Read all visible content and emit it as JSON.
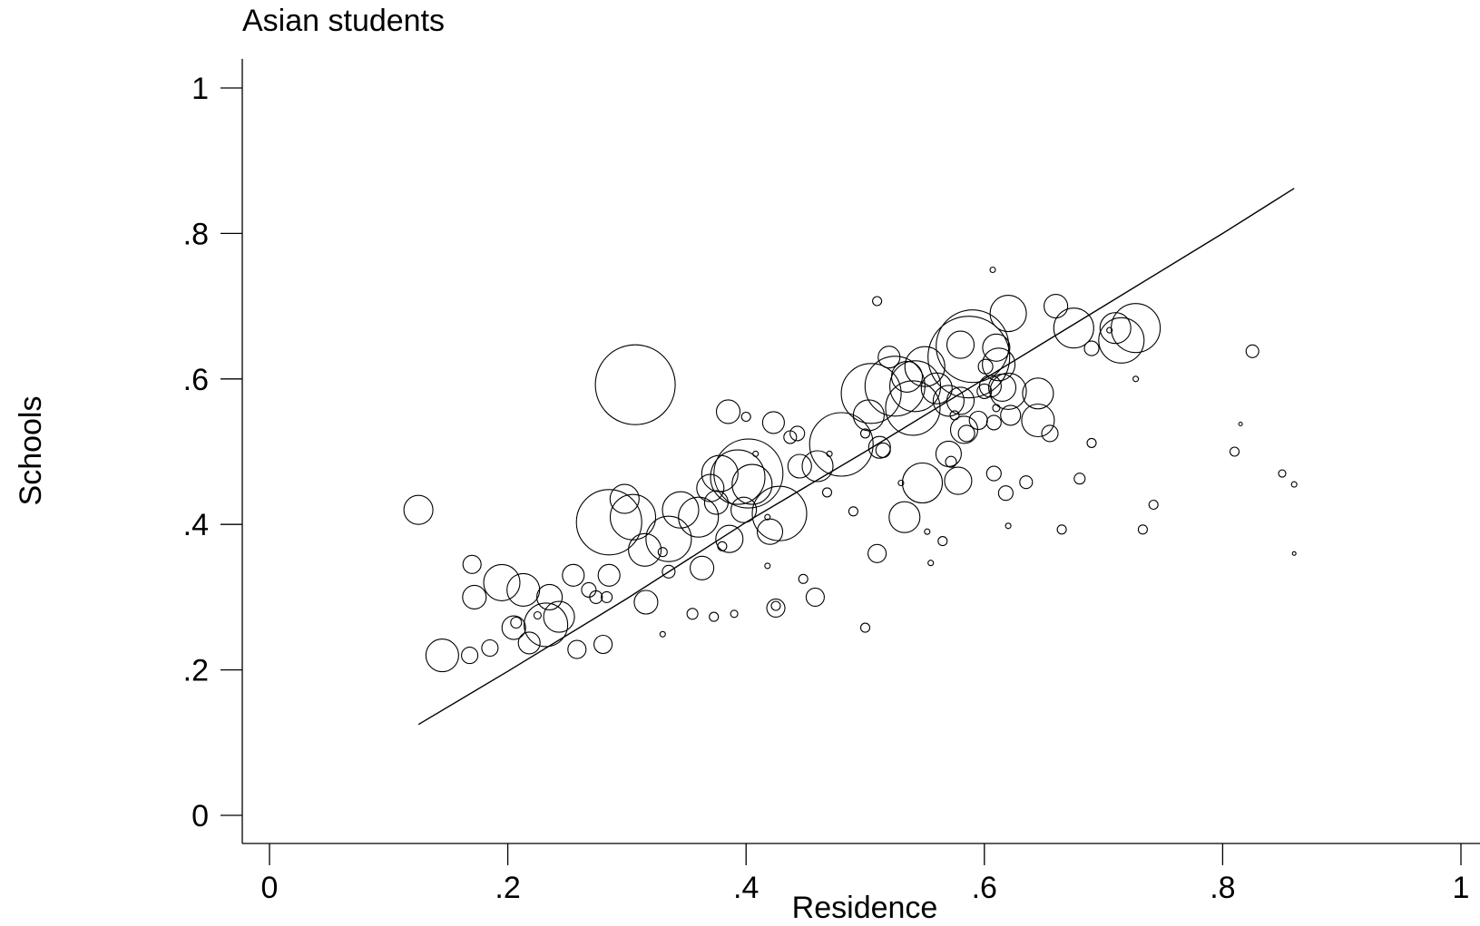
{
  "chart_data": {
    "type": "scatter",
    "title": "Asian students",
    "xlabel": "Residence",
    "ylabel": "Schools",
    "xlim": [
      -0.025,
      1.005
    ],
    "ylim": [
      -0.04,
      1.04
    ],
    "x_ticks": [
      0,
      0.2,
      0.4,
      0.6,
      0.8,
      1
    ],
    "x_tick_labels": [
      "0",
      ".2",
      ".4",
      ".6",
      ".8",
      "1"
    ],
    "y_ticks": [
      0,
      0.2,
      0.4,
      0.6,
      0.8,
      1
    ],
    "y_tick_labels": [
      "0",
      ".2",
      ".4",
      ".6",
      ".8",
      "1"
    ],
    "grid": false,
    "legend": "none",
    "marker": "hollow circle (size = weight)",
    "points": [
      {
        "x": 0.125,
        "y": 0.42,
        "r": 16
      },
      {
        "x": 0.145,
        "y": 0.22,
        "r": 18
      },
      {
        "x": 0.168,
        "y": 0.22,
        "r": 9
      },
      {
        "x": 0.17,
        "y": 0.345,
        "r": 10
      },
      {
        "x": 0.172,
        "y": 0.3,
        "r": 13
      },
      {
        "x": 0.185,
        "y": 0.23,
        "r": 9
      },
      {
        "x": 0.195,
        "y": 0.32,
        "r": 20
      },
      {
        "x": 0.207,
        "y": 0.265,
        "r": 6
      },
      {
        "x": 0.205,
        "y": 0.258,
        "r": 13
      },
      {
        "x": 0.213,
        "y": 0.31,
        "r": 18
      },
      {
        "x": 0.218,
        "y": 0.237,
        "r": 12
      },
      {
        "x": 0.225,
        "y": 0.275,
        "r": 4
      },
      {
        "x": 0.232,
        "y": 0.262,
        "r": 24
      },
      {
        "x": 0.235,
        "y": 0.3,
        "r": 14
      },
      {
        "x": 0.243,
        "y": 0.273,
        "r": 17
      },
      {
        "x": 0.255,
        "y": 0.33,
        "r": 12
      },
      {
        "x": 0.258,
        "y": 0.228,
        "r": 10
      },
      {
        "x": 0.268,
        "y": 0.31,
        "r": 8
      },
      {
        "x": 0.274,
        "y": 0.3,
        "r": 7
      },
      {
        "x": 0.28,
        "y": 0.235,
        "r": 10
      },
      {
        "x": 0.283,
        "y": 0.3,
        "r": 6
      },
      {
        "x": 0.285,
        "y": 0.33,
        "r": 12
      },
      {
        "x": 0.285,
        "y": 0.403,
        "r": 36
      },
      {
        "x": 0.298,
        "y": 0.435,
        "r": 16
      },
      {
        "x": 0.305,
        "y": 0.41,
        "r": 25
      },
      {
        "x": 0.307,
        "y": 0.592,
        "r": 44
      },
      {
        "x": 0.315,
        "y": 0.365,
        "r": 18
      },
      {
        "x": 0.316,
        "y": 0.293,
        "r": 13
      },
      {
        "x": 0.33,
        "y": 0.249,
        "r": 3
      },
      {
        "x": 0.33,
        "y": 0.362,
        "r": 5
      },
      {
        "x": 0.335,
        "y": 0.335,
        "r": 7
      },
      {
        "x": 0.335,
        "y": 0.38,
        "r": 25
      },
      {
        "x": 0.345,
        "y": 0.42,
        "r": 20
      },
      {
        "x": 0.355,
        "y": 0.277,
        "r": 6
      },
      {
        "x": 0.36,
        "y": 0.41,
        "r": 22
      },
      {
        "x": 0.363,
        "y": 0.34,
        "r": 13
      },
      {
        "x": 0.37,
        "y": 0.45,
        "r": 15
      },
      {
        "x": 0.373,
        "y": 0.273,
        "r": 5
      },
      {
        "x": 0.375,
        "y": 0.43,
        "r": 13
      },
      {
        "x": 0.378,
        "y": 0.47,
        "r": 20
      },
      {
        "x": 0.38,
        "y": 0.37,
        "r": 5
      },
      {
        "x": 0.385,
        "y": 0.555,
        "r": 13
      },
      {
        "x": 0.386,
        "y": 0.38,
        "r": 15
      },
      {
        "x": 0.39,
        "y": 0.277,
        "r": 4
      },
      {
        "x": 0.393,
        "y": 0.465,
        "r": 30
      },
      {
        "x": 0.398,
        "y": 0.42,
        "r": 14
      },
      {
        "x": 0.4,
        "y": 0.548,
        "r": 5
      },
      {
        "x": 0.402,
        "y": 0.47,
        "r": 38
      },
      {
        "x": 0.405,
        "y": 0.455,
        "r": 22
      },
      {
        "x": 0.408,
        "y": 0.497,
        "r": 3
      },
      {
        "x": 0.418,
        "y": 0.343,
        "r": 3
      },
      {
        "x": 0.418,
        "y": 0.41,
        "r": 3
      },
      {
        "x": 0.42,
        "y": 0.39,
        "r": 14
      },
      {
        "x": 0.423,
        "y": 0.54,
        "r": 12
      },
      {
        "x": 0.425,
        "y": 0.285,
        "r": 10
      },
      {
        "x": 0.425,
        "y": 0.288,
        "r": 5
      },
      {
        "x": 0.428,
        "y": 0.415,
        "r": 30
      },
      {
        "x": 0.437,
        "y": 0.52,
        "r": 7
      },
      {
        "x": 0.443,
        "y": 0.525,
        "r": 8
      },
      {
        "x": 0.445,
        "y": 0.48,
        "r": 13
      },
      {
        "x": 0.448,
        "y": 0.325,
        "r": 5
      },
      {
        "x": 0.458,
        "y": 0.3,
        "r": 10
      },
      {
        "x": 0.46,
        "y": 0.48,
        "r": 17
      },
      {
        "x": 0.468,
        "y": 0.444,
        "r": 5
      },
      {
        "x": 0.47,
        "y": 0.497,
        "r": 3
      },
      {
        "x": 0.48,
        "y": 0.51,
        "r": 35
      },
      {
        "x": 0.49,
        "y": 0.418,
        "r": 5
      },
      {
        "x": 0.5,
        "y": 0.258,
        "r": 5
      },
      {
        "x": 0.5,
        "y": 0.525,
        "r": 5
      },
      {
        "x": 0.503,
        "y": 0.55,
        "r": 17
      },
      {
        "x": 0.505,
        "y": 0.58,
        "r": 33
      },
      {
        "x": 0.51,
        "y": 0.36,
        "r": 10
      },
      {
        "x": 0.51,
        "y": 0.707,
        "r": 5
      },
      {
        "x": 0.512,
        "y": 0.506,
        "r": 12
      },
      {
        "x": 0.515,
        "y": 0.502,
        "r": 8
      },
      {
        "x": 0.52,
        "y": 0.63,
        "r": 12
      },
      {
        "x": 0.525,
        "y": 0.59,
        "r": 33
      },
      {
        "x": 0.53,
        "y": 0.457,
        "r": 3
      },
      {
        "x": 0.533,
        "y": 0.41,
        "r": 17
      },
      {
        "x": 0.535,
        "y": 0.603,
        "r": 17
      },
      {
        "x": 0.54,
        "y": 0.56,
        "r": 30
      },
      {
        "x": 0.542,
        "y": 0.59,
        "r": 28
      },
      {
        "x": 0.548,
        "y": 0.457,
        "r": 22
      },
      {
        "x": 0.55,
        "y": 0.617,
        "r": 22
      },
      {
        "x": 0.552,
        "y": 0.39,
        "r": 3
      },
      {
        "x": 0.555,
        "y": 0.347,
        "r": 3
      },
      {
        "x": 0.56,
        "y": 0.587,
        "r": 17
      },
      {
        "x": 0.565,
        "y": 0.377,
        "r": 5
      },
      {
        "x": 0.57,
        "y": 0.57,
        "r": 17
      },
      {
        "x": 0.57,
        "y": 0.497,
        "r": 14
      },
      {
        "x": 0.572,
        "y": 0.486,
        "r": 6
      },
      {
        "x": 0.575,
        "y": 0.55,
        "r": 5
      },
      {
        "x": 0.578,
        "y": 0.46,
        "r": 15
      },
      {
        "x": 0.58,
        "y": 0.57,
        "r": 15
      },
      {
        "x": 0.58,
        "y": 0.647,
        "r": 15
      },
      {
        "x": 0.583,
        "y": 0.53,
        "r": 15
      },
      {
        "x": 0.585,
        "y": 0.525,
        "r": 9
      },
      {
        "x": 0.587,
        "y": 0.63,
        "r": 45
      },
      {
        "x": 0.59,
        "y": 0.645,
        "r": 40
      },
      {
        "x": 0.595,
        "y": 0.543,
        "r": 10
      },
      {
        "x": 0.6,
        "y": 0.583,
        "r": 8
      },
      {
        "x": 0.601,
        "y": 0.617,
        "r": 8
      },
      {
        "x": 0.605,
        "y": 0.59,
        "r": 12
      },
      {
        "x": 0.607,
        "y": 0.75,
        "r": 3
      },
      {
        "x": 0.608,
        "y": 0.47,
        "r": 8
      },
      {
        "x": 0.608,
        "y": 0.54,
        "r": 8
      },
      {
        "x": 0.61,
        "y": 0.56,
        "r": 4
      },
      {
        "x": 0.61,
        "y": 0.643,
        "r": 15
      },
      {
        "x": 0.612,
        "y": 0.62,
        "r": 18
      },
      {
        "x": 0.615,
        "y": 0.588,
        "r": 15
      },
      {
        "x": 0.618,
        "y": 0.443,
        "r": 8
      },
      {
        "x": 0.62,
        "y": 0.398,
        "r": 3
      },
      {
        "x": 0.62,
        "y": 0.583,
        "r": 20
      },
      {
        "x": 0.62,
        "y": 0.69,
        "r": 20
      },
      {
        "x": 0.622,
        "y": 0.55,
        "r": 11
      },
      {
        "x": 0.635,
        "y": 0.458,
        "r": 7
      },
      {
        "x": 0.645,
        "y": 0.58,
        "r": 17
      },
      {
        "x": 0.645,
        "y": 0.543,
        "r": 18
      },
      {
        "x": 0.655,
        "y": 0.525,
        "r": 9
      },
      {
        "x": 0.66,
        "y": 0.7,
        "r": 13
      },
      {
        "x": 0.665,
        "y": 0.393,
        "r": 5
      },
      {
        "x": 0.675,
        "y": 0.67,
        "r": 22
      },
      {
        "x": 0.68,
        "y": 0.463,
        "r": 6
      },
      {
        "x": 0.69,
        "y": 0.512,
        "r": 5
      },
      {
        "x": 0.69,
        "y": 0.642,
        "r": 8
      },
      {
        "x": 0.705,
        "y": 0.667,
        "r": 3
      },
      {
        "x": 0.71,
        "y": 0.67,
        "r": 17
      },
      {
        "x": 0.715,
        "y": 0.653,
        "r": 25
      },
      {
        "x": 0.727,
        "y": 0.6,
        "r": 3
      },
      {
        "x": 0.727,
        "y": 0.67,
        "r": 27
      },
      {
        "x": 0.733,
        "y": 0.393,
        "r": 5
      },
      {
        "x": 0.742,
        "y": 0.427,
        "r": 5
      },
      {
        "x": 0.81,
        "y": 0.5,
        "r": 5
      },
      {
        "x": 0.815,
        "y": 0.538,
        "r": 2
      },
      {
        "x": 0.825,
        "y": 0.638,
        "r": 7
      },
      {
        "x": 0.85,
        "y": 0.47,
        "r": 4
      },
      {
        "x": 0.86,
        "y": 0.455,
        "r": 3
      },
      {
        "x": 0.86,
        "y": 0.36,
        "r": 2
      }
    ],
    "fit_line": {
      "x": [
        0.125,
        0.2,
        0.3,
        0.4,
        0.5,
        0.6,
        0.7,
        0.8,
        0.86
      ],
      "y": [
        0.125,
        0.198,
        0.298,
        0.403,
        0.5,
        0.6,
        0.7,
        0.8,
        0.862
      ]
    }
  }
}
